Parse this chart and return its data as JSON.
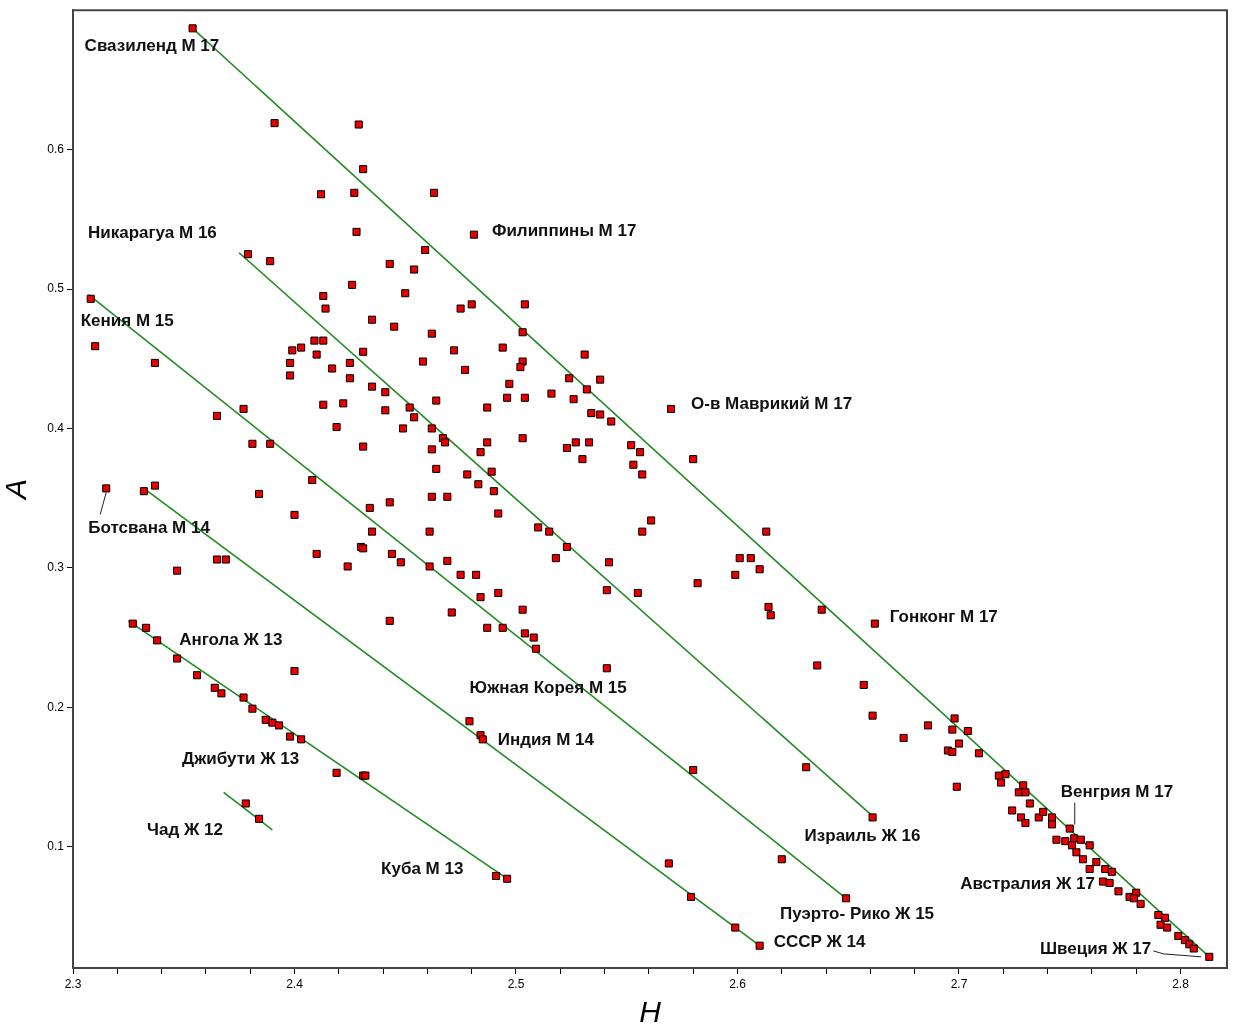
{
  "chart_data": {
    "type": "scatter",
    "xlabel": "H",
    "ylabel": "A",
    "legend": false,
    "xlim": [
      2.3,
      2.821
    ],
    "ylim": [
      0.013,
      0.7
    ],
    "xticks": [
      2.3,
      {
        "value": 2.32,
        "label": null
      },
      {
        "value": 2.34,
        "label": null
      },
      {
        "value": 2.36,
        "label": null
      },
      {
        "value": 2.38,
        "label": null
      },
      2.4,
      {
        "value": 2.42,
        "label": null
      },
      {
        "value": 2.44,
        "label": null
      },
      {
        "value": 2.46,
        "label": null
      },
      {
        "value": 2.48,
        "label": null
      },
      2.5,
      {
        "value": 2.52,
        "label": null
      },
      {
        "value": 2.54,
        "label": null
      },
      {
        "value": 2.56,
        "label": null
      },
      {
        "value": 2.58,
        "label": null
      },
      2.6,
      {
        "value": 2.62,
        "label": null
      },
      {
        "value": 2.64,
        "label": null
      },
      {
        "value": 2.66,
        "label": null
      },
      {
        "value": 2.68,
        "label": null
      },
      2.7,
      {
        "value": 2.72,
        "label": null
      },
      {
        "value": 2.74,
        "label": null
      },
      {
        "value": 2.76,
        "label": null
      },
      {
        "value": 2.78,
        "label": null
      },
      2.8
    ],
    "yticks": [
      0.1,
      0.2,
      0.3,
      0.4,
      0.5,
      0.6
    ],
    "series": [
      {
        "type": "scatter",
        "color": "#e60000",
        "marker": "square",
        "x": [
          2.354,
          2.391,
          2.429,
          2.431,
          2.412,
          2.427,
          2.463,
          2.428,
          2.481,
          2.459,
          2.379,
          2.389,
          2.443,
          2.454,
          2.426,
          2.45,
          2.48,
          2.475,
          2.413,
          2.414,
          2.435,
          2.445,
          2.462,
          2.504,
          2.503,
          2.399,
          2.403,
          2.409,
          2.413,
          2.41,
          2.398,
          2.398,
          2.417,
          2.425,
          2.425,
          2.431,
          2.458,
          2.472,
          2.477,
          2.494,
          2.503,
          2.502,
          2.531,
          2.524,
          2.538,
          2.532,
          2.516,
          2.526,
          2.504,
          2.496,
          2.497,
          2.487,
          2.464,
          2.435,
          2.441,
          2.452,
          2.454,
          2.413,
          2.422,
          2.441,
          2.377,
          2.419,
          2.449,
          2.462,
          2.467,
          2.468,
          2.462,
          2.484,
          2.487,
          2.503,
          2.523,
          2.527,
          2.533,
          2.53,
          2.552,
          2.556,
          2.553,
          2.557,
          2.381,
          2.389,
          2.431,
          2.464,
          2.478,
          2.489,
          2.483,
          2.49,
          2.462,
          2.469,
          2.492,
          2.408,
          2.384,
          2.4,
          2.443,
          2.434,
          2.435,
          2.461,
          2.43,
          2.41,
          2.444,
          2.51,
          2.515,
          2.523,
          2.557,
          2.561,
          2.518,
          2.534,
          2.538,
          2.543,
          2.57,
          2.58,
          2.613,
          2.601,
          2.606,
          2.61,
          2.599,
          2.582,
          2.614,
          2.615,
          2.638,
          2.636,
          2.469,
          2.475,
          2.482,
          2.484,
          2.492,
          2.471,
          2.503,
          2.487,
          2.494,
          2.504,
          2.508,
          2.509,
          2.542,
          2.541,
          2.555,
          2.541,
          2.337,
          2.365,
          2.315,
          2.332,
          2.337,
          2.365,
          2.369,
          2.347,
          2.424,
          2.431,
          2.448,
          2.461,
          2.443,
          2.4,
          2.479,
          2.484,
          2.485,
          2.308,
          2.31,
          2.327,
          2.333,
          2.338,
          2.347,
          2.356,
          2.364,
          2.367,
          2.377,
          2.381,
          2.387,
          2.39,
          2.393,
          2.398,
          2.403,
          2.419,
          2.431,
          2.432,
          2.491,
          2.496,
          2.378,
          2.384,
          2.662,
          2.657,
          2.661,
          2.675,
          2.686,
          2.698,
          2.697,
          2.704,
          2.7,
          2.695,
          2.697,
          2.709,
          2.699,
          2.718,
          2.721,
          2.719,
          2.729,
          2.727,
          2.73,
          2.732,
          2.724,
          2.728,
          2.73,
          2.736,
          2.738,
          2.742,
          2.742,
          2.75,
          2.744,
          2.748,
          2.752,
          2.755,
          2.759,
          2.751,
          2.753,
          2.756,
          2.759,
          2.762,
          2.766,
          2.769,
          2.765,
          2.768,
          2.772,
          2.777,
          2.78,
          2.779,
          2.782,
          2.79,
          2.793,
          2.791,
          2.794,
          2.799,
          2.802,
          2.804,
          2.806,
          2.813,
          2.631,
          2.661,
          2.58,
          2.62,
          2.649,
          2.569,
          2.579,
          2.599,
          2.61
        ],
        "values": [
          0.687,
          0.619,
          0.618,
          0.586,
          0.568,
          0.569,
          0.569,
          0.541,
          0.539,
          0.528,
          0.525,
          0.52,
          0.518,
          0.514,
          0.503,
          0.497,
          0.489,
          0.486,
          0.495,
          0.486,
          0.478,
          0.473,
          0.468,
          0.489,
          0.469,
          0.456,
          0.458,
          0.463,
          0.463,
          0.453,
          0.447,
          0.438,
          0.443,
          0.447,
          0.436,
          0.455,
          0.448,
          0.456,
          0.442,
          0.458,
          0.448,
          0.444,
          0.453,
          0.436,
          0.435,
          0.428,
          0.425,
          0.421,
          0.422,
          0.422,
          0.432,
          0.415,
          0.42,
          0.43,
          0.426,
          0.415,
          0.408,
          0.417,
          0.418,
          0.413,
          0.414,
          0.401,
          0.4,
          0.4,
          0.393,
          0.39,
          0.385,
          0.383,
          0.39,
          0.393,
          0.386,
          0.39,
          0.39,
          0.378,
          0.388,
          0.383,
          0.374,
          0.367,
          0.389,
          0.389,
          0.387,
          0.371,
          0.367,
          0.369,
          0.36,
          0.355,
          0.351,
          0.351,
          0.339,
          0.363,
          0.353,
          0.338,
          0.347,
          0.343,
          0.326,
          0.326,
          0.315,
          0.31,
          0.31,
          0.329,
          0.326,
          0.315,
          0.326,
          0.334,
          0.307,
          0.411,
          0.41,
          0.405,
          0.414,
          0.378,
          0.326,
          0.307,
          0.307,
          0.299,
          0.295,
          0.289,
          0.272,
          0.266,
          0.27,
          0.23,
          0.305,
          0.295,
          0.295,
          0.279,
          0.282,
          0.268,
          0.27,
          0.257,
          0.257,
          0.253,
          0.25,
          0.242,
          0.304,
          0.284,
          0.282,
          0.228,
          0.447,
          0.409,
          0.357,
          0.355,
          0.359,
          0.306,
          0.306,
          0.298,
          0.301,
          0.314,
          0.304,
          0.301,
          0.262,
          0.226,
          0.19,
          0.18,
          0.177,
          0.493,
          0.459,
          0.26,
          0.257,
          0.248,
          0.235,
          0.223,
          0.214,
          0.21,
          0.207,
          0.199,
          0.191,
          0.189,
          0.187,
          0.179,
          0.177,
          0.153,
          0.151,
          0.151,
          0.079,
          0.077,
          0.131,
          0.12,
          0.26,
          0.216,
          0.194,
          0.178,
          0.187,
          0.192,
          0.184,
          0.183,
          0.174,
          0.169,
          0.168,
          0.167,
          0.143,
          0.151,
          0.152,
          0.146,
          0.144,
          0.139,
          0.139,
          0.131,
          0.126,
          0.121,
          0.117,
          0.121,
          0.125,
          0.121,
          0.116,
          0.113,
          0.105,
          0.104,
          0.106,
          0.105,
          0.101,
          0.101,
          0.096,
          0.091,
          0.084,
          0.089,
          0.084,
          0.082,
          0.075,
          0.074,
          0.068,
          0.064,
          0.067,
          0.063,
          0.059,
          0.051,
          0.049,
          0.044,
          0.042,
          0.036,
          0.033,
          0.03,
          0.027,
          0.021,
          0.157,
          0.121,
          0.155,
          0.091,
          0.063,
          0.088,
          0.064,
          0.042,
          0.029
        ]
      },
      {
        "type": "line",
        "color": "#228b22",
        "marker": "none",
        "x": [
          2.354,
          2.813
        ],
        "values": [
          0.687,
          0.021
        ]
      },
      {
        "type": "line",
        "color": "#228b22",
        "marker": "none",
        "x": [
          2.375,
          2.661
        ],
        "values": [
          0.526,
          0.122
        ]
      },
      {
        "type": "line",
        "color": "#228b22",
        "marker": "none",
        "x": [
          2.307,
          2.649
        ],
        "values": [
          0.496,
          0.063
        ]
      },
      {
        "type": "line",
        "color": "#228b22",
        "marker": "none",
        "x": [
          2.332,
          2.61
        ],
        "values": [
          0.357,
          0.029
        ]
      },
      {
        "type": "line",
        "color": "#228b22",
        "marker": "none",
        "x": [
          2.325,
          2.497
        ],
        "values": [
          0.262,
          0.076
        ]
      },
      {
        "type": "line",
        "color": "#228b22",
        "marker": "none",
        "x": [
          2.368,
          2.39
        ],
        "values": [
          0.139,
          0.112
        ]
      }
    ],
    "annotations": [
      {
        "text": "Свазиленд М 17",
        "x": 2.354,
        "y": 0.687
      },
      {
        "text": "Филиппины М 17",
        "x": 2.481,
        "y": 0.539
      },
      {
        "text": "Никарагуа М 16",
        "x": 2.379,
        "y": 0.525
      },
      {
        "text": "Кения М 15",
        "x": 2.308,
        "y": 0.493
      },
      {
        "text": "О-в Маврикий М 17",
        "x": 2.57,
        "y": 0.414
      },
      {
        "text": "Ботсвана М 14",
        "x": 2.315,
        "y": 0.357
      },
      {
        "text": "Ангола Ж 13",
        "x": 2.338,
        "y": 0.248
      },
      {
        "text": "Южная Корея М 15",
        "x": 2.479,
        "y": 0.19
      },
      {
        "text": "Индия М 14",
        "x": 2.485,
        "y": 0.177
      },
      {
        "text": "Джибути Ж 13",
        "x": 2.403,
        "y": 0.177
      },
      {
        "text": "Чад Ж 12",
        "x": 2.384,
        "y": 0.12
      },
      {
        "text": "Куба М 13",
        "x": 2.491,
        "y": 0.079
      },
      {
        "text": "Израиль Ж 16",
        "x": 2.661,
        "y": 0.121
      },
      {
        "text": "Гонконг М 17",
        "x": 2.662,
        "y": 0.26
      },
      {
        "text": "Венгрия М 17",
        "x": 2.75,
        "y": 0.113
      },
      {
        "text": "Австралия Ж 17",
        "x": 2.765,
        "y": 0.075
      },
      {
        "text": "Пуэрто- Рико Ж 15",
        "x": 2.649,
        "y": 0.063
      },
      {
        "text": "СССР Ж 14",
        "x": 2.61,
        "y": 0.029
      },
      {
        "text": "Швеция Ж 17",
        "x": 2.813,
        "y": 0.021
      }
    ]
  }
}
